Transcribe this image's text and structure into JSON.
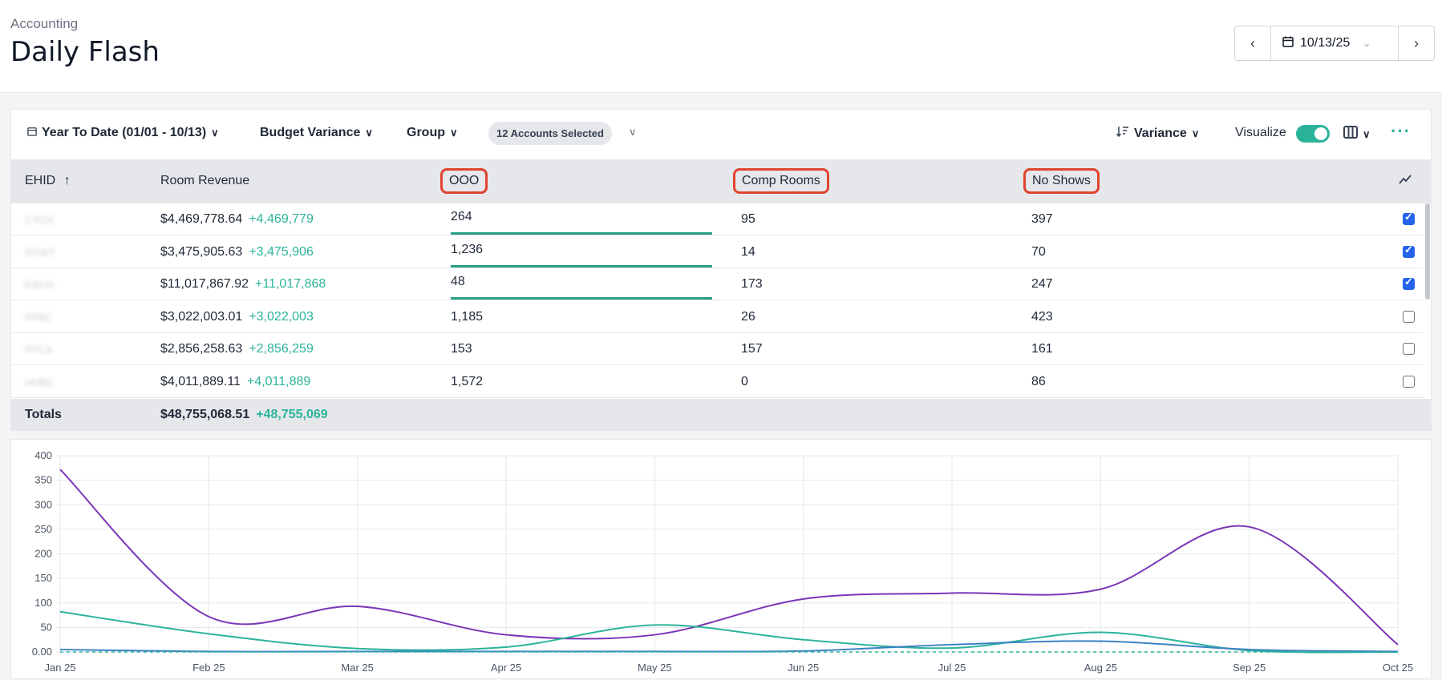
{
  "header": {
    "breadcrumb": "Accounting",
    "title": "Daily Flash",
    "date": "10/13/25"
  },
  "toolbar": {
    "period": "Year To Date (01/01 - 10/13)",
    "budget": "Budget Variance",
    "group": "Group",
    "accounts_pill": "12 Accounts Selected",
    "sort": "Variance",
    "visualize": "Visualize"
  },
  "table": {
    "columns": {
      "ehid": "EHID",
      "room_revenue": "Room Revenue",
      "ooo": "OOO",
      "comp_rooms": "Comp Rooms",
      "no_shows": "No Shows"
    },
    "rows": [
      {
        "ehid": "CYCA",
        "revenue": "$4,469,778.64",
        "variance": "+4,469,779",
        "ooo": "264",
        "comp": "95",
        "noshows": "397",
        "selected": true
      },
      {
        "ehid": "DTWT",
        "revenue": "$3,475,905.63",
        "variance": "+3,475,906",
        "ooo": "1,236",
        "comp": "14",
        "noshows": "70",
        "selected": true
      },
      {
        "ehid": "ESCH",
        "revenue": "$11,017,867.92",
        "variance": "+11,017,868",
        "ooo": "48",
        "comp": "173",
        "noshows": "247",
        "selected": true
      },
      {
        "ehid": "FPBC",
        "revenue": "$3,022,003.01",
        "variance": "+3,022,003",
        "ooo": "1,185",
        "comp": "26",
        "noshows": "423",
        "selected": false
      },
      {
        "ehid": "FPCA",
        "revenue": "$2,856,258.63",
        "variance": "+2,856,259",
        "ooo": "153",
        "comp": "157",
        "noshows": "161",
        "selected": false
      },
      {
        "ehid": "HHBC",
        "revenue": "$4,011,889.11",
        "variance": "+4,011,889",
        "ooo": "1,572",
        "comp": "0",
        "noshows": "86",
        "selected": false
      }
    ],
    "totals": {
      "label": "Totals",
      "revenue": "$48,755,068.51",
      "variance": "+48,755,069"
    }
  },
  "colors": {
    "accent": "#2bb39a",
    "highlight": "#e0442f",
    "purple": "#7b35b8",
    "teal": "#2bb39a",
    "blue": "#3b82c4"
  },
  "chart_data": {
    "type": "line",
    "x": [
      "Jan 25",
      "Feb 25",
      "Mar 25",
      "Apr 25",
      "May 25",
      "Jun 25",
      "Jul 25",
      "Aug 25",
      "Sep 25",
      "Oct 25"
    ],
    "yticks": [
      "400",
      "350",
      "300",
      "250",
      "200",
      "150",
      "100",
      "50",
      "0.00"
    ],
    "ylim": [
      0,
      400
    ],
    "grid": true,
    "series": [
      {
        "color": "#7b35b8",
        "values": [
          372,
          72,
          93,
          35,
          35,
          108,
          120,
          128,
          255,
          15
        ]
      },
      {
        "color": "#2bb39a",
        "values": [
          82,
          37,
          7,
          10,
          55,
          25,
          8,
          40,
          3,
          0
        ]
      },
      {
        "color": "#3b82c4",
        "values": [
          5,
          1,
          1,
          1,
          1,
          2,
          15,
          22,
          5,
          1
        ]
      },
      {
        "color": "#2bb39a",
        "dashed": true,
        "values": [
          0,
          0,
          0,
          0,
          0,
          0,
          0,
          0,
          0,
          0
        ]
      }
    ]
  }
}
